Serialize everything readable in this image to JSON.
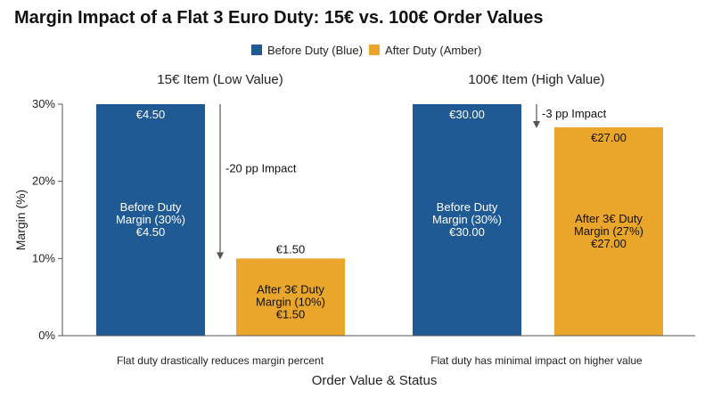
{
  "colors": {
    "before": "#1f5a94",
    "after": "#eaa52b",
    "axis": "#555555",
    "arrow": "#555555"
  },
  "chart_data": {
    "type": "bar",
    "title": "Margin Impact of a Flat 3 Euro Duty: 15€ vs. 100€ Order Values",
    "xlabel": "Order Value & Status",
    "ylabel": "Margin (%)",
    "ylim": [
      0,
      30
    ],
    "yticks": [
      {
        "value": 0,
        "label": "0%"
      },
      {
        "value": 10,
        "label": "10%"
      },
      {
        "value": 20,
        "label": "20%"
      },
      {
        "value": 30,
        "label": "30%"
      }
    ],
    "legend": {
      "placement": "top-center",
      "entries": [
        {
          "label": "Before Duty (Blue)",
          "color_key": "before"
        },
        {
          "label": "After Duty (Amber)",
          "color_key": "after"
        }
      ]
    },
    "panels": [
      {
        "title": "15€ Item (Low Value)",
        "caption": "Flat duty drastically reduces margin percent",
        "impact_label": "-20 pp Impact",
        "bars": [
          {
            "series": "Before Duty",
            "value": 30,
            "top_label": "€4.50",
            "inner_lines": [
              "Before Duty",
              "Margin (30%)",
              "€4.50"
            ],
            "top_label_inside": true
          },
          {
            "series": "After Duty",
            "value": 10,
            "top_label": "€1.50",
            "inner_lines": [
              "After 3€ Duty",
              "Margin (10%)",
              "€1.50"
            ],
            "top_label_inside": false
          }
        ]
      },
      {
        "title": "100€ Item (High Value)",
        "caption": "Flat duty has minimal impact on higher value",
        "impact_label": "-3 pp Impact",
        "bars": [
          {
            "series": "Before Duty",
            "value": 30,
            "top_label": "€30.00",
            "inner_lines": [
              "Before Duty",
              "Margin (30%)",
              "€30.00"
            ],
            "top_label_inside": true
          },
          {
            "series": "After Duty",
            "value": 27,
            "top_label": "€27.00",
            "inner_lines": [
              "After 3€ Duty",
              "Margin (27%)",
              "€27.00"
            ],
            "top_label_inside": true
          }
        ]
      }
    ]
  }
}
